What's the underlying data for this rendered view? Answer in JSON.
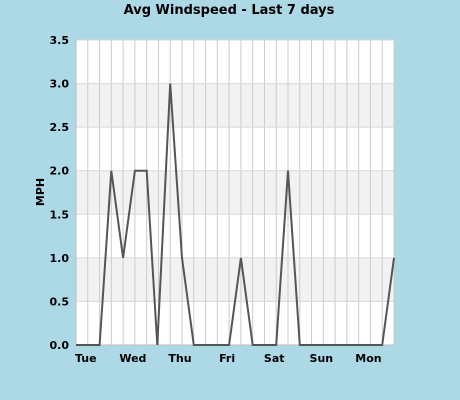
{
  "chart_data": {
    "type": "line",
    "title": "Avg Windspeed - Last 7 days",
    "xlabel": "",
    "ylabel": "MPH",
    "ylim": [
      0,
      3.5
    ],
    "yticks": [
      "0.0",
      "0.5",
      "1.0",
      "1.5",
      "2.0",
      "2.5",
      "3.0",
      "3.5"
    ],
    "xlim": [
      0,
      27
    ],
    "x_tick_labels": [
      {
        "x": 1,
        "label": "Tue"
      },
      {
        "x": 5,
        "label": "Wed"
      },
      {
        "x": 9,
        "label": "Thu"
      },
      {
        "x": 13,
        "label": "Fri"
      },
      {
        "x": 17,
        "label": "Sat"
      },
      {
        "x": 21,
        "label": "Sun"
      },
      {
        "x": 25,
        "label": "Mon"
      }
    ],
    "grid": true,
    "series": [
      {
        "color": "#555555",
        "points": [
          [
            0,
            0
          ],
          [
            2,
            0
          ],
          [
            3,
            2
          ],
          [
            4,
            1
          ],
          [
            5,
            2
          ],
          [
            6,
            2
          ],
          [
            6.9,
            0
          ],
          [
            8,
            3
          ],
          [
            9,
            1
          ],
          [
            10,
            0
          ],
          [
            13,
            0
          ],
          [
            14,
            1
          ],
          [
            15,
            0
          ],
          [
            17,
            0
          ],
          [
            18,
            2
          ],
          [
            19,
            0
          ],
          [
            26,
            0
          ],
          [
            27,
            1
          ]
        ]
      }
    ]
  }
}
